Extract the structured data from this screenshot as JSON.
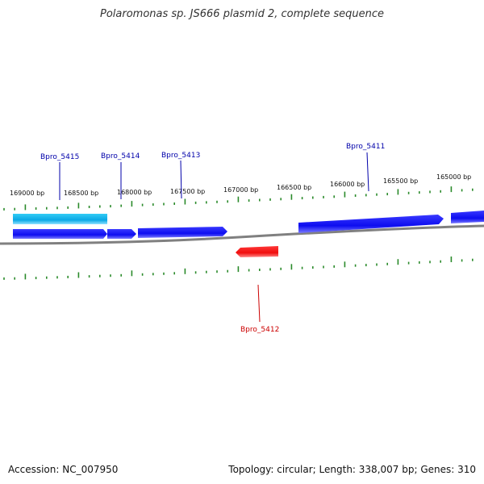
{
  "title": "Polaromonas sp. JS666 plasmid 2, complete sequence",
  "footer": {
    "accession": "Accession: NC_007950",
    "summary": "Topology: circular; Length: 338,007 bp; Genes: 310"
  },
  "colors": {
    "forward_gene": "#1a1aff",
    "reverse_gene": "#ff1a1a",
    "highlight_gene": "#22bbee",
    "backbone": "#808080",
    "ticks": "#2a8a2a",
    "forward_label": "#0000aa",
    "reverse_label": "#cc0000"
  },
  "tick_labels": [
    "169000 bp",
    "168500 bp",
    "168000 bp",
    "167500 bp",
    "167000 bp",
    "166500 bp",
    "166000 bp",
    "165500 bp",
    "165000 bp"
  ],
  "gene_labels": [
    {
      "name": "Bpro_5415",
      "strand": "forward"
    },
    {
      "name": "Bpro_5414",
      "strand": "forward"
    },
    {
      "name": "Bpro_5413",
      "strand": "forward"
    },
    {
      "name": "Bpro_5411",
      "strand": "forward"
    },
    {
      "name": "Bpro_5412",
      "strand": "reverse"
    }
  ]
}
